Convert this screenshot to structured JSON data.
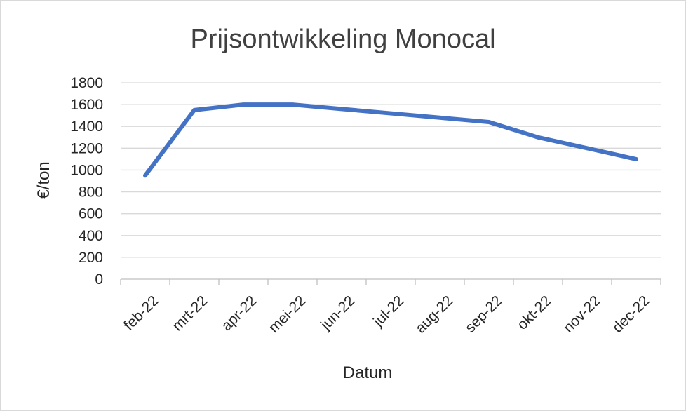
{
  "chart_data": {
    "type": "line",
    "title": "Prijsontwikkeling Monocal",
    "xlabel": "Datum",
    "ylabel": "€/ton",
    "categories": [
      "feb-22",
      "mrt-22",
      "apr-22",
      "mei-22",
      "jun-22",
      "jul-22",
      "aug-22",
      "sep-22",
      "okt-22",
      "nov-22",
      "dec-22"
    ],
    "series": [
      {
        "values": [
          950,
          1550,
          1600,
          1600,
          1560,
          1520,
          1480,
          1440,
          1300,
          1200,
          1100
        ],
        "color": "#4472c4"
      }
    ],
    "yticks": [
      "0",
      "200",
      "400",
      "600",
      "800",
      "1000",
      "1200",
      "1400",
      "1600",
      "1800"
    ],
    "ylim": [
      0,
      1800
    ],
    "grid": true,
    "legend": "none"
  }
}
